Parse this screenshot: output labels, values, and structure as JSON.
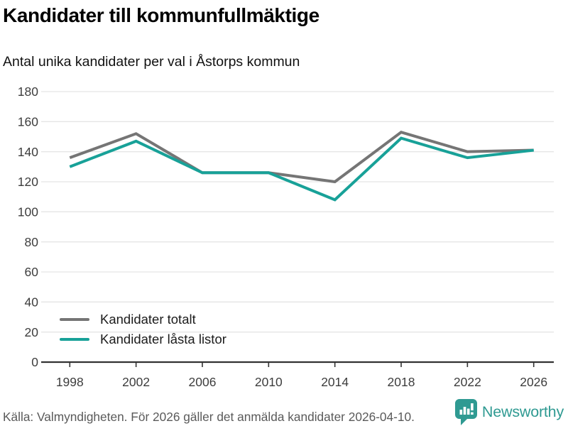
{
  "header": {
    "title": "Kandidater till kommunfullmäktige",
    "subtitle": "Antal unika kandidater per val i Åstorps kommun"
  },
  "chart_data": {
    "type": "line",
    "categories": [
      "1998",
      "2002",
      "2006",
      "2010",
      "2014",
      "2018",
      "2022",
      "2026"
    ],
    "series": [
      {
        "name": "Kandidater totalt",
        "color": "#757575",
        "values": [
          136,
          152,
          126,
          126,
          120,
          153,
          140,
          141
        ]
      },
      {
        "name": "Kandidater låsta listor",
        "color": "#18a198",
        "values": [
          130,
          147,
          126,
          126,
          108,
          149,
          136,
          141
        ]
      }
    ],
    "ylim": [
      0,
      180
    ],
    "yticks": [
      0,
      20,
      40,
      60,
      80,
      100,
      120,
      140,
      160,
      180
    ],
    "xlabel": "",
    "ylabel": "",
    "grid": true,
    "legend_position": "inside-bottom-left",
    "gridline_color": "#e5e5e5",
    "axis_color": "#333333"
  },
  "footer": {
    "source": "Källa: Valmyndigheten. För 2026 gäller det anmälda kandidater 2026-04-10.",
    "brand": "Newsworthy",
    "brand_color": "#2f9a92"
  }
}
